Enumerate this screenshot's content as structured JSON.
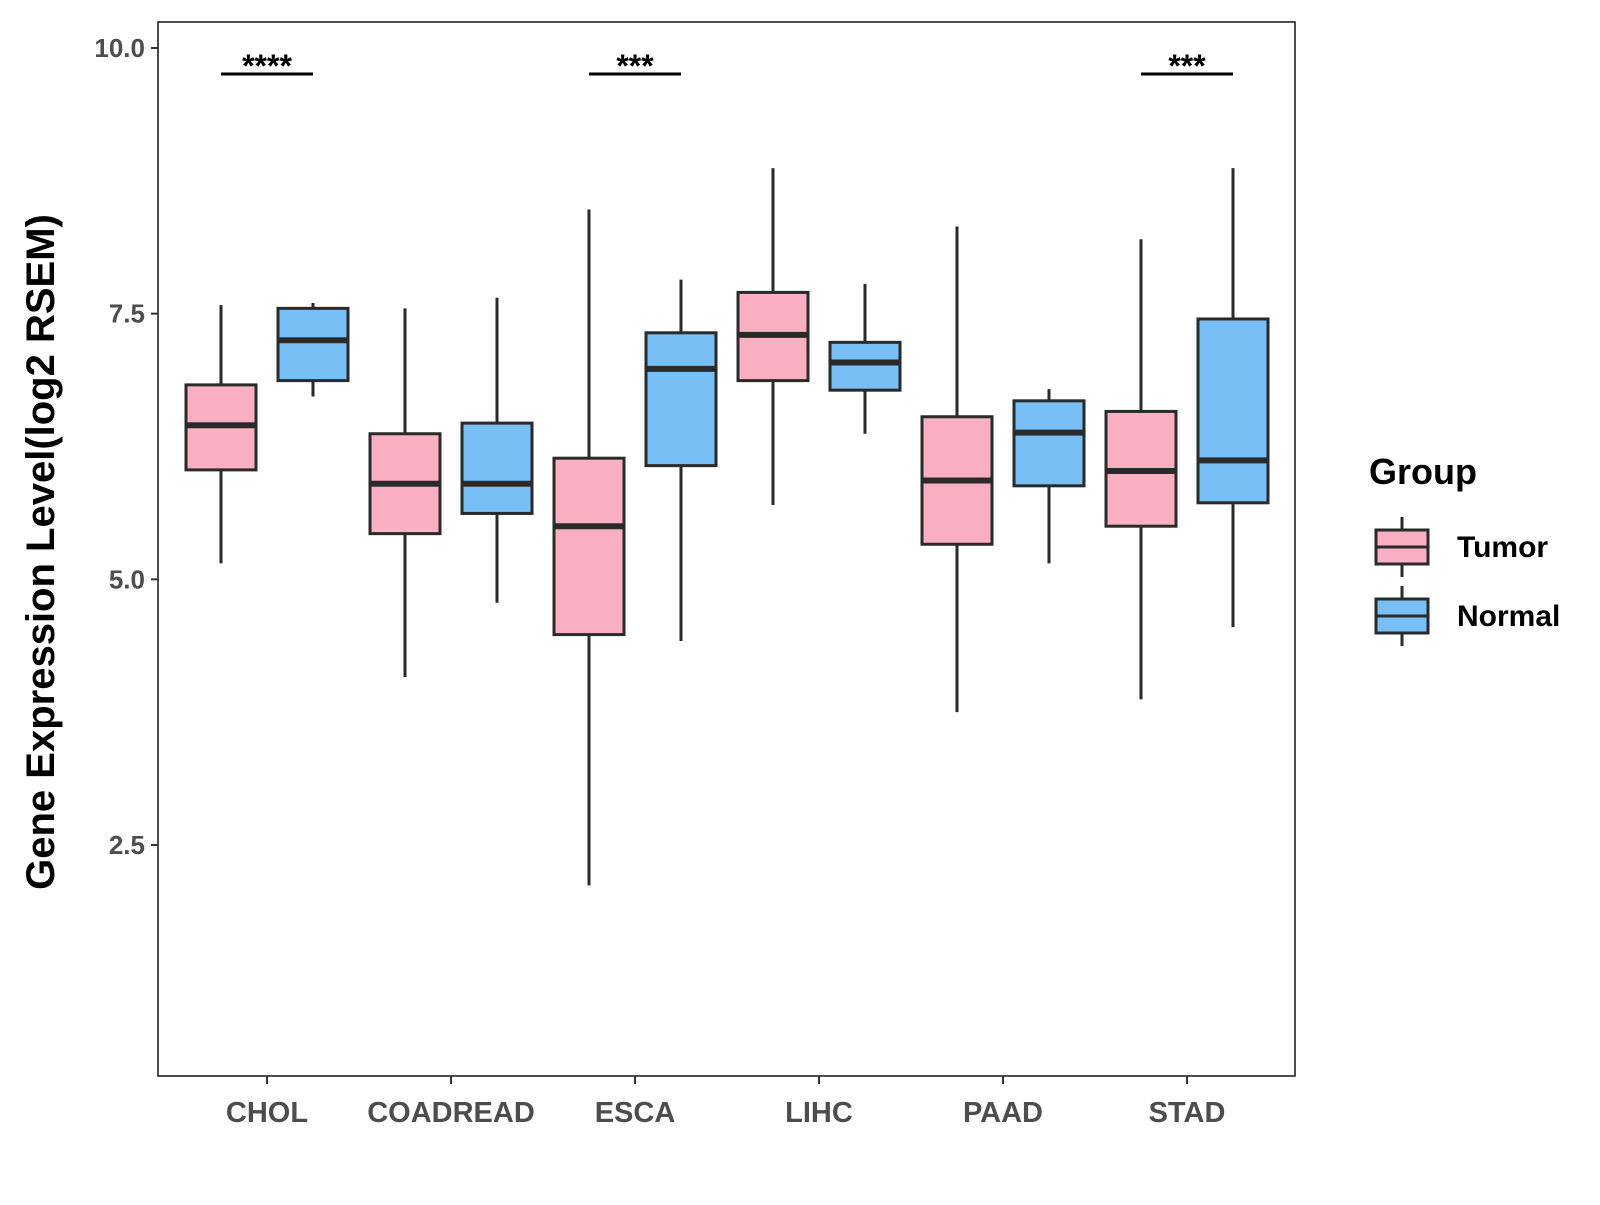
{
  "chart_data": {
    "type": "box",
    "title": "",
    "ylabel": "Gene Expression Level(log2 RSEM)",
    "xlabel": "",
    "ylim": [
      0.2,
      10.2
    ],
    "yticks": [
      "10.0",
      "7.5",
      "5.0",
      "2.5"
    ],
    "ytick_values": [
      10.0,
      7.5,
      5.0,
      2.5
    ],
    "categories": [
      "CHOL",
      "COADREAD",
      "ESCA",
      "LIHC",
      "PAAD",
      "STAD"
    ],
    "legend": {
      "title": "Group",
      "entries": [
        {
          "name": "Tumor",
          "color": "#FAB0C2"
        },
        {
          "name": "Normal",
          "color": "#78BFF6"
        }
      ],
      "position": "right"
    },
    "series": [
      {
        "name": "Tumor",
        "color": "#FAB0C2",
        "boxes": [
          {
            "category": "CHOL",
            "whisker_low": 5.15,
            "q1": 6.03,
            "median": 6.45,
            "q3": 6.83,
            "whisker_high": 7.58
          },
          {
            "category": "COADREAD",
            "whisker_low": 4.08,
            "q1": 5.43,
            "median": 5.9,
            "q3": 6.37,
            "whisker_high": 7.55
          },
          {
            "category": "ESCA",
            "whisker_low": 2.12,
            "q1": 4.48,
            "median": 5.5,
            "q3": 6.14,
            "whisker_high": 8.48
          },
          {
            "category": "LIHC",
            "whisker_low": 5.7,
            "q1": 6.87,
            "median": 7.3,
            "q3": 7.7,
            "whisker_high": 8.87
          },
          {
            "category": "PAAD",
            "whisker_low": 3.75,
            "q1": 5.33,
            "median": 5.93,
            "q3": 6.53,
            "whisker_high": 8.32
          },
          {
            "category": "STAD",
            "whisker_low": 3.87,
            "q1": 5.5,
            "median": 6.02,
            "q3": 6.58,
            "whisker_high": 8.2
          }
        ]
      },
      {
        "name": "Normal",
        "color": "#78BFF6",
        "boxes": [
          {
            "category": "CHOL",
            "whisker_low": 6.72,
            "q1": 6.87,
            "median": 7.25,
            "q3": 7.55,
            "whisker_high": 7.6
          },
          {
            "category": "COADREAD",
            "whisker_low": 4.78,
            "q1": 5.62,
            "median": 5.9,
            "q3": 6.47,
            "whisker_high": 7.65
          },
          {
            "category": "ESCA",
            "whisker_low": 4.42,
            "q1": 6.07,
            "median": 6.98,
            "q3": 7.32,
            "whisker_high": 7.82
          },
          {
            "category": "LIHC",
            "whisker_low": 6.37,
            "q1": 6.78,
            "median": 7.04,
            "q3": 7.23,
            "whisker_high": 7.78
          },
          {
            "category": "PAAD",
            "whisker_low": 5.15,
            "q1": 5.88,
            "median": 6.38,
            "q3": 6.68,
            "whisker_high": 6.79
          },
          {
            "category": "STAD",
            "whisker_low": 4.55,
            "q1": 5.72,
            "median": 6.12,
            "q3": 7.45,
            "whisker_high": 8.87
          }
        ]
      }
    ],
    "annotations": [
      {
        "category": "CHOL",
        "label": "****"
      },
      {
        "category": "ESCA",
        "label": "***"
      },
      {
        "category": "STAD",
        "label": "***"
      }
    ]
  }
}
